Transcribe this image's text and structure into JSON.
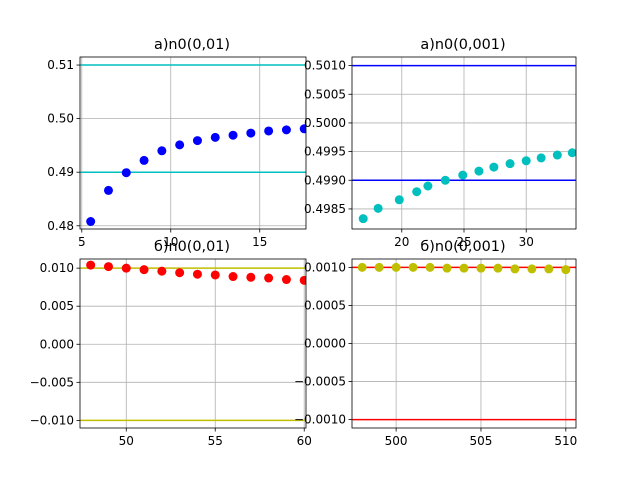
{
  "chart_data": [
    {
      "type": "scatter",
      "title": "a)n0(0,01)",
      "xlabel": "",
      "ylabel": "",
      "xlim": [
        4.9,
        17.6
      ],
      "ylim": [
        0.4794,
        0.5115
      ],
      "xticks": [
        5,
        10,
        15
      ],
      "xtick_labels": [
        "5",
        "10",
        "15"
      ],
      "yticks": [
        0.48,
        0.49,
        0.5,
        0.51
      ],
      "ytick_labels": [
        "0.48",
        "0.49",
        "0.50",
        "0.51"
      ],
      "grid": true,
      "hlines": [
        {
          "y": 0.51,
          "color": "#00bfbf"
        },
        {
          "y": 0.49,
          "color": "#00bfbf"
        }
      ],
      "series": [
        {
          "color": "#0000ff",
          "x": [
            5.5,
            6.5,
            7.5,
            8.5,
            9.5,
            10.5,
            11.5,
            12.5,
            13.5,
            14.5,
            15.5,
            16.5,
            17.5
          ],
          "y": [
            0.4808,
            0.4866,
            0.4899,
            0.4922,
            0.494,
            0.4951,
            0.4959,
            0.4965,
            0.4969,
            0.4973,
            0.4977,
            0.4979,
            0.4981
          ]
        }
      ]
    },
    {
      "type": "scatter",
      "title": "a)n0(0,001)",
      "xlabel": "",
      "ylabel": "",
      "xlim": [
        16.0,
        34.0
      ],
      "ylim": [
        0.49815,
        0.50115
      ],
      "xticks": [
        20,
        25,
        30
      ],
      "xtick_labels": [
        "20",
        "25",
        "30"
      ],
      "yticks": [
        0.4985,
        0.499,
        0.4995,
        0.5,
        0.5005,
        0.501
      ],
      "ytick_labels": [
        "0.4985",
        "0.4990",
        "0.4995",
        "0.5000",
        "0.5005",
        "0.5010"
      ],
      "grid": true,
      "hlines": [
        {
          "y": 0.501,
          "color": "#0000ff"
        },
        {
          "y": 0.499,
          "color": "#0000ff"
        }
      ],
      "series": [
        {
          "color": "#00bfbf",
          "x": [
            16.9,
            18.1,
            19.8,
            21.2,
            22.1,
            23.5,
            24.9,
            26.2,
            27.4,
            28.7,
            30.0,
            31.2,
            32.5,
            33.7
          ],
          "y": [
            0.49833,
            0.49851,
            0.49866,
            0.4988,
            0.4989,
            0.499,
            0.49909,
            0.49916,
            0.49923,
            0.49929,
            0.49934,
            0.49939,
            0.49944,
            0.49948
          ]
        }
      ]
    },
    {
      "type": "scatter",
      "title": "б)n0(0,01)",
      "xlabel": "",
      "ylabel": "",
      "xlim": [
        47.4,
        60.1
      ],
      "ylim": [
        -0.011,
        0.0112
      ],
      "xticks": [
        50,
        55,
        60
      ],
      "xtick_labels": [
        "50",
        "55",
        "60"
      ],
      "yticks": [
        0.01,
        0.005,
        0.0,
        -0.005,
        -0.01
      ],
      "ytick_labels": [
        "0.010",
        "0.005",
        "0.000",
        "−0.005",
        "−0.010"
      ],
      "grid": true,
      "hlines": [
        {
          "y": 0.01,
          "color": "#bfbf00"
        },
        {
          "y": -0.01,
          "color": "#bfbf00"
        }
      ],
      "series": [
        {
          "color": "#ff0000",
          "x": [
            48,
            49,
            50,
            51,
            52,
            53,
            54,
            55,
            56,
            57,
            58,
            59,
            60
          ],
          "y": [
            0.0104,
            0.0102,
            0.01,
            0.0098,
            0.0096,
            0.0094,
            0.0092,
            0.0091,
            0.0089,
            0.0088,
            0.0087,
            0.0085,
            0.0084
          ]
        }
      ]
    },
    {
      "type": "scatter",
      "title": "б)n0(0,001)",
      "xlabel": "",
      "ylabel": "",
      "xlim": [
        497.4,
        510.6
      ],
      "ylim": [
        -0.00111,
        0.00111
      ],
      "xticks": [
        500,
        505,
        510
      ],
      "xtick_labels": [
        "500",
        "505",
        "510"
      ],
      "yticks": [
        0.001,
        0.0005,
        0.0,
        -0.0005,
        -0.001
      ],
      "ytick_labels": [
        "0.0010",
        "0.0005",
        "0.0000",
        "−0.0005",
        "−0.0010"
      ],
      "grid": true,
      "hlines": [
        {
          "y": 0.001,
          "color": "#ff0000"
        },
        {
          "y": -0.001,
          "color": "#ff0000"
        }
      ],
      "series": [
        {
          "color": "#bfbf00",
          "x": [
            498,
            499,
            500,
            501,
            502,
            503,
            504,
            505,
            506,
            507,
            508,
            509,
            510
          ],
          "y": [
            0.001,
            0.001,
            0.001,
            0.001,
            0.001,
            0.00099,
            0.00099,
            0.00099,
            0.00099,
            0.00098,
            0.00098,
            0.00098,
            0.00097
          ]
        }
      ]
    }
  ]
}
